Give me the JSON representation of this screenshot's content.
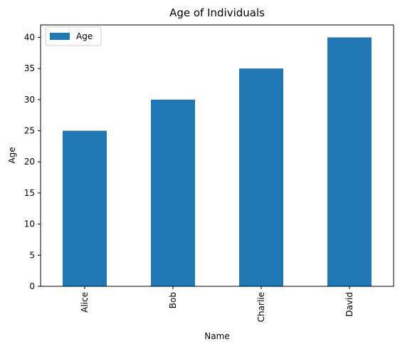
{
  "chart_data": {
    "type": "bar",
    "title": "Age of Individuals",
    "xlabel": "Name",
    "ylabel": "Age",
    "categories": [
      "Alice",
      "Bob",
      "Charlie",
      "David"
    ],
    "series": [
      {
        "name": "Age",
        "values": [
          25,
          30,
          35,
          40
        ],
        "color": "#1f77b4"
      }
    ],
    "ylim": [
      0,
      42
    ],
    "yticks": [
      0,
      5,
      10,
      15,
      20,
      25,
      30,
      35,
      40
    ],
    "xtick_rotation": 90,
    "grid": false,
    "legend_position": "top-left"
  }
}
